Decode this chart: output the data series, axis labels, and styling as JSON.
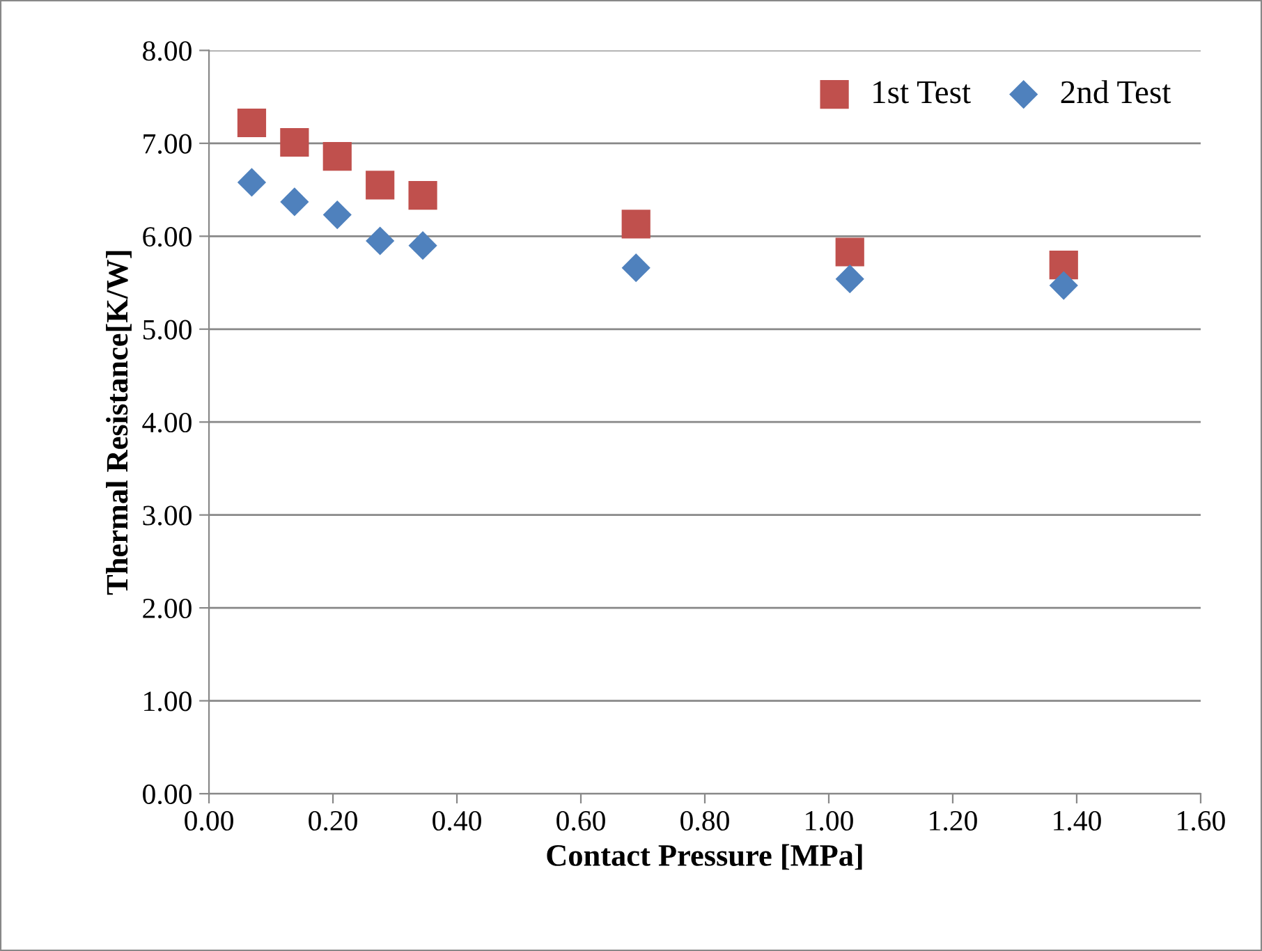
{
  "chart_data": {
    "type": "scatter",
    "xlabel": "Contact Pressure [MPa]",
    "ylabel": "Thermal Resistance[K/W]",
    "x": [
      0.069,
      0.138,
      0.207,
      0.276,
      0.345,
      0.689,
      1.034,
      1.379
    ],
    "series": [
      {
        "name": "1st Test",
        "color": "#c0504d",
        "marker": "square",
        "values": [
          7.22,
          7.01,
          6.86,
          6.55,
          6.44,
          6.13,
          5.83,
          5.69
        ]
      },
      {
        "name": "2nd Test",
        "color": "#4f81bd",
        "marker": "diamond",
        "values": [
          6.58,
          6.37,
          6.23,
          5.95,
          5.9,
          5.66,
          5.54,
          5.47
        ]
      }
    ],
    "xlim": [
      0,
      1.6
    ],
    "xticks": [
      {
        "value": 0,
        "label": "0.00"
      },
      {
        "value": 0.2,
        "label": "0.20"
      },
      {
        "value": 0.4,
        "label": "0.40"
      },
      {
        "value": 0.6,
        "label": "0.60"
      },
      {
        "value": 0.8,
        "label": "0.80"
      },
      {
        "value": 1.0,
        "label": "1.00"
      },
      {
        "value": 1.2,
        "label": "1.20"
      },
      {
        "value": 1.4,
        "label": "1.40"
      },
      {
        "value": 1.6,
        "label": "1.60"
      }
    ],
    "ylim": [
      0,
      8
    ],
    "yticks": [
      {
        "value": 0,
        "label": "0.00"
      },
      {
        "value": 1,
        "label": "1.00"
      },
      {
        "value": 2,
        "label": "2.00"
      },
      {
        "value": 3,
        "label": "3.00"
      },
      {
        "value": 4,
        "label": "4.00"
      },
      {
        "value": 5,
        "label": "5.00"
      },
      {
        "value": 6,
        "label": "6.00"
      },
      {
        "value": 7,
        "label": "7.00"
      },
      {
        "value": 8,
        "label": "8.00"
      }
    ],
    "grid": "y",
    "legend": "top right"
  }
}
